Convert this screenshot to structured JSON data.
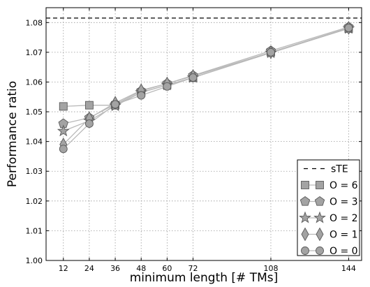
{
  "chart_data": {
    "type": "line",
    "xlabel": "minimum length [# TMs]",
    "ylabel": "Performance ratio",
    "x": [
      12,
      24,
      36,
      48,
      60,
      72,
      108,
      144
    ],
    "xticks": [
      "12",
      "24",
      "36",
      "48",
      "60",
      "72",
      "108",
      "144"
    ],
    "xlim": [
      4,
      150
    ],
    "ylim": [
      1.0,
      1.085
    ],
    "yticks": [
      "1.00",
      "1.01",
      "1.02",
      "1.03",
      "1.04",
      "1.05",
      "1.06",
      "1.07",
      "1.08"
    ],
    "grid": true,
    "legend_position": "bottom-right",
    "reference": {
      "name": "sTE",
      "value": 1.0815,
      "style": "dashed",
      "color": "#000000"
    },
    "series": [
      {
        "name": "O = 6",
        "marker": "square",
        "values": [
          1.0518,
          1.0522,
          1.0522,
          1.0565,
          1.059,
          1.0615,
          1.07,
          1.078
        ]
      },
      {
        "name": "O = 3",
        "marker": "pentagon",
        "values": [
          1.046,
          1.048,
          1.0525,
          1.057,
          1.0595,
          1.0622,
          1.0705,
          1.0785
        ]
      },
      {
        "name": "O = 2",
        "marker": "star",
        "values": [
          1.0435,
          1.047,
          1.052,
          1.0565,
          1.059,
          1.0615,
          1.0698,
          1.078
        ]
      },
      {
        "name": "O = 1",
        "marker": "diamond",
        "values": [
          1.039,
          1.0478,
          1.053,
          1.0572,
          1.0595,
          1.062,
          1.07,
          1.0782
        ]
      },
      {
        "name": "O = 0",
        "marker": "circle",
        "values": [
          1.0375,
          1.046,
          1.0525,
          1.0555,
          1.0585,
          1.0615,
          1.07,
          1.0782
        ]
      }
    ],
    "colors": {
      "marker_fill": "#a3a3a3",
      "marker_stroke": "#5a5a5a",
      "line": "#b9b9b9",
      "grid": "#9a9a9a"
    }
  }
}
